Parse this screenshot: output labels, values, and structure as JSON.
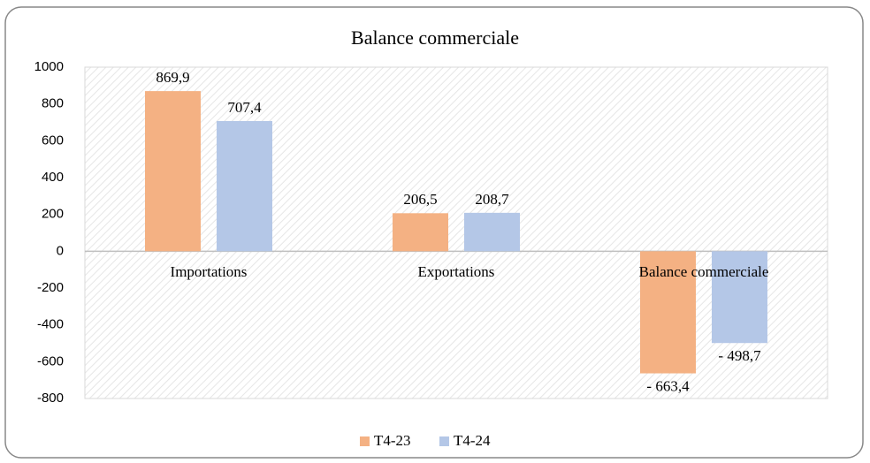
{
  "chart_data": {
    "type": "bar",
    "title": "Balance commerciale",
    "categories": [
      "Importations",
      "Exportations",
      "Balance commerciale"
    ],
    "series": [
      {
        "name": "T4-23",
        "color": "#f4b183",
        "values": [
          869.9,
          206.5,
          -663.4
        ],
        "value_labels": [
          "869,9",
          "206,5",
          "- 663,4"
        ]
      },
      {
        "name": "T4-24",
        "color": "#b4c7e7",
        "values": [
          707.4,
          208.7,
          -498.7
        ],
        "value_labels": [
          "707,4",
          "208,7",
          "- 498,7"
        ]
      }
    ],
    "ylim": [
      -800,
      1000
    ],
    "yticks": [
      -800,
      -600,
      -400,
      -200,
      0,
      200,
      400,
      600,
      800,
      1000
    ],
    "grid": false,
    "legend": "bottom"
  }
}
